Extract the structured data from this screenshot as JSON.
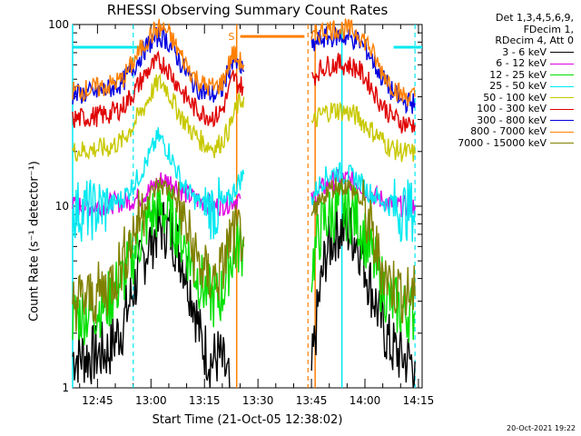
{
  "chart_data": {
    "type": "line",
    "title": "RHESSI Observing Summary Count Rates",
    "xlabel": "Start Time (21-Oct-05 12:38:02)",
    "ylabel": "Count Rate (s⁻¹ detector⁻¹)",
    "x_ticks": [
      "12:45",
      "13:00",
      "13:15",
      "13:30",
      "13:45",
      "14:00",
      "14:15"
    ],
    "y_ticks": [
      "1",
      "10",
      "100"
    ],
    "y_scale": "log",
    "ylim": [
      1,
      100
    ],
    "xlim_minutes_after_start": [
      0,
      98
    ],
    "info_lines": [
      "Det 1,3,4,5,6,9,",
      "FDecim 1,",
      "RDecim 4, Att 0"
    ],
    "annotation": "S",
    "timestamp": "20-Oct-2021 19:22",
    "series": [
      {
        "name": "3 - 6 keV",
        "color": "#000000",
        "segments": [
          {
            "t": [
              0,
              5,
              10,
              14,
              18,
              21,
              24,
              25,
              28,
              31,
              34,
              36,
              39,
              41,
              43,
              44
            ],
            "y": [
              1.5,
              1.5,
              1.6,
              2.2,
              4,
              6,
              7.5,
              7.8,
              7,
              5,
              3,
              1.8,
              1.4,
              1.5,
              1.2,
              1
            ]
          },
          {
            "t": [
              67,
              69,
              71,
              74,
              77,
              80,
              83,
              86,
              89,
              92,
              95,
              96
            ],
            "y": [
              1.2,
              3,
              5.5,
              7.5,
              7.5,
              6.5,
              4,
              2.5,
              1.7,
              1.5,
              1.4,
              1.4
            ]
          }
        ]
      },
      {
        "name": "6 - 12 keV",
        "color": "#e000e0",
        "segments": [
          {
            "t": [
              0,
              5,
              10,
              14,
              18,
              21,
              24,
              25,
              28,
              31,
              34,
              37,
              40,
              42,
              44,
              46,
              47
            ],
            "y": [
              10,
              10,
              10.3,
              10.6,
              11,
              12,
              13.5,
              14,
              13.5,
              12,
              11,
              10.5,
              10,
              10.2,
              10.5,
              11,
              11
            ]
          },
          {
            "t": [
              67,
              69,
              71,
              74,
              77,
              80,
              83,
              86,
              89,
              92,
              95,
              96
            ],
            "y": [
              10.5,
              12,
              13,
              14,
              14,
              13.5,
              12,
              11,
              10.3,
              10,
              10,
              10
            ]
          }
        ]
      },
      {
        "name": "12 - 25 keV",
        "color": "#00e000",
        "segments": [
          {
            "t": [
              0,
              5,
              10,
              14,
              18,
              21,
              24,
              25,
              28,
              31,
              34,
              37,
              40,
              42,
              44,
              46,
              48
            ],
            "y": [
              2.5,
              2.6,
              3,
              4,
              6,
              8.5,
              9.5,
              9.5,
              8.5,
              6.5,
              4.5,
              3.5,
              3,
              3.3,
              5,
              6,
              6
            ]
          },
          {
            "t": [
              67,
              69,
              71,
              74,
              77,
              80,
              83,
              86,
              89,
              92,
              95,
              96
            ],
            "y": [
              4.5,
              7,
              8.5,
              9.5,
              9.5,
              8.5,
              6,
              4,
              3,
              2.7,
              2.6,
              2.6
            ]
          }
        ]
      },
      {
        "name": "25 - 50 keV",
        "color": "#00e8f0",
        "segments": [
          {
            "t": [
              0,
              5,
              10,
              14,
              18,
              21,
              23,
              24,
              25,
              27,
              29,
              31,
              34,
              37,
              40,
              42,
              44,
              46,
              48
            ],
            "y": [
              9.5,
              9.5,
              10,
              11,
              14,
              18,
              22,
              24,
              23,
              20,
              16,
              13,
              11,
              10,
              9.5,
              10,
              11,
              13,
              15
            ]
          },
          {
            "t": [
              67,
              69,
              71,
              74,
              77,
              80,
              83,
              86,
              89,
              92,
              95,
              96
            ],
            "y": [
              11,
              13,
              14.5,
              15.5,
              15,
              14,
              12,
              11,
              10,
              9.5,
              9.5,
              9.5
            ]
          }
        ]
      },
      {
        "name": "50 - 100 keV",
        "color": "#c8c800",
        "segments": [
          {
            "t": [
              0,
              5,
              10,
              14,
              17,
              20,
              22,
              24,
              26,
              28,
              31,
              34,
              37,
              40,
              42,
              44,
              46,
              48
            ],
            "y": [
              20,
              20.5,
              21,
              23,
              28,
              35,
              42,
              48,
              46,
              38,
              30,
              25,
              22,
              21,
              23,
              27,
              35,
              40
            ]
          },
          {
            "t": [
              67,
              69,
              71,
              74,
              77,
              80,
              83,
              86,
              89,
              92,
              95,
              96
            ],
            "y": [
              28,
              31,
              33,
              34,
              33,
              31,
              27,
              24,
              21,
              20,
              19.5,
              19.5
            ]
          }
        ]
      },
      {
        "name": "100 - 300 keV",
        "color": "#e00000",
        "segments": [
          {
            "t": [
              0,
              5,
              10,
              14,
              17,
              20,
              22,
              24,
              26,
              28,
              31,
              34,
              37,
              40,
              42,
              44,
              45,
              46,
              48
            ],
            "y": [
              30,
              31,
              32,
              35,
              42,
              52,
              58,
              62,
              60,
              52,
              42,
              35,
              32,
              31,
              34,
              44,
              52,
              48,
              45
            ]
          },
          {
            "t": [
              67,
              69,
              71,
              74,
              77,
              80,
              83,
              86,
              89,
              92,
              95,
              96
            ],
            "y": [
              50,
              56,
              59,
              61,
              60,
              57,
              48,
              38,
              32,
              29,
              28,
              28
            ]
          }
        ]
      },
      {
        "name": "300 - 800 keV",
        "color": "#0000e0",
        "segments": [
          {
            "t": [
              0,
              5,
              10,
              14,
              17,
              20,
              22,
              24,
              26,
              28,
              31,
              34,
              37,
              40,
              42,
              44,
              45,
              46,
              48
            ],
            "y": [
              41,
              42,
              44,
              48,
              58,
              72,
              80,
              86,
              84,
              74,
              58,
              47,
              42,
              41,
              44,
              58,
              66,
              60,
              55
            ]
          },
          {
            "t": [
              67,
              69,
              71,
              74,
              77,
              80,
              83,
              86,
              89,
              92,
              95,
              96
            ],
            "y": [
              75,
              82,
              85,
              86,
              85,
              82,
              70,
              54,
              44,
              38,
              37,
              37
            ]
          }
        ]
      },
      {
        "name": "800 - 7000 keV",
        "color": "#ff7f00",
        "segments": [
          {
            "t": [
              0,
              5,
              10,
              14,
              17,
              20,
              22,
              24,
              26,
              28,
              31,
              34,
              37,
              40,
              42,
              44,
              45,
              46,
              48
            ],
            "y": [
              43,
              44,
              46,
              50,
              62,
              78,
              88,
              95,
              94,
              82,
              64,
              52,
              46,
              45,
              48,
              62,
              70,
              65,
              60
            ]
          },
          {
            "t": [
              67,
              69,
              71,
              74,
              77,
              80,
              83,
              86,
              89,
              92,
              95,
              96
            ],
            "y": [
              82,
              90,
              94,
              95,
              94,
              90,
              77,
              58,
              48,
              41,
              40,
              40
            ]
          }
        ]
      },
      {
        "name": "7000 - 15000 keV",
        "color": "#808000",
        "segments": [
          {
            "t": [
              0,
              5,
              10,
              14,
              18,
              21,
              24,
              25,
              28,
              31,
              34,
              37,
              40,
              42,
              44,
              46,
              48
            ],
            "y": [
              3,
              3.1,
              3.6,
              5,
              8,
              11,
              13,
              13,
              12,
              8.5,
              5.5,
              4.2,
              4,
              4.5,
              6.5,
              7,
              6.8
            ]
          },
          {
            "t": [
              67,
              69,
              71,
              74,
              77,
              80,
              83,
              86,
              89,
              92,
              95,
              96
            ],
            "y": [
              6,
              10,
              12,
              13,
              13,
              11.5,
              8,
              5,
              3.8,
              3.4,
              3.2,
              3.2
            ]
          }
        ]
      }
    ],
    "markers": {
      "cyan_solid": [
        0,
        75.5
      ],
      "cyan_dashed": [
        17,
        96
      ],
      "orange_solid": [
        46,
        68
      ],
      "orange_dashed": [
        66
      ]
    },
    "cyan_level": 75,
    "orange_bar": {
      "t": [
        47,
        65
      ],
      "y": 86
    }
  }
}
